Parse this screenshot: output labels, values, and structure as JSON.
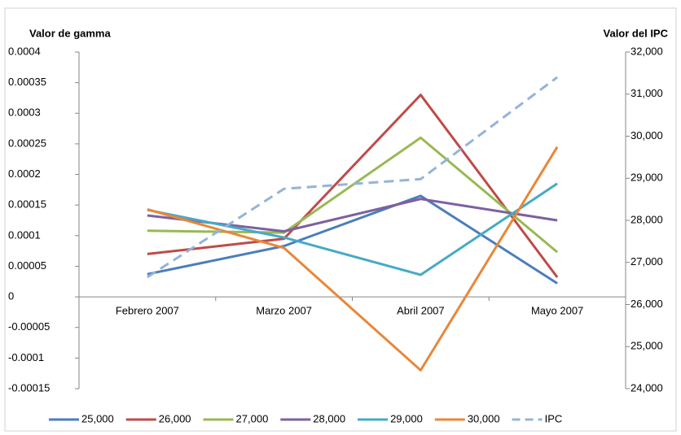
{
  "chart_data": {
    "type": "line",
    "y_label": "Valor de gamma",
    "y2_label": "Valor del IPC",
    "categories": [
      "Febrero 2007",
      "Marzo 2007",
      "Abril 2007",
      "Mayo 2007"
    ],
    "ylim": [
      -0.00015,
      0.0004
    ],
    "yticks": [
      -0.00015,
      -0.0001,
      -5e-05,
      0,
      5e-05,
      0.0001,
      0.00015,
      0.0002,
      0.00025,
      0.0003,
      0.00035,
      0.0004
    ],
    "y2lim": [
      24000,
      32000
    ],
    "y2ticks": [
      {
        "value": 24000,
        "label": "24,000"
      },
      {
        "value": 25000,
        "label": "25,000"
      },
      {
        "value": 26000,
        "label": "26,000"
      },
      {
        "value": 27000,
        "label": "27,000"
      },
      {
        "value": 28000,
        "label": "28,000"
      },
      {
        "value": 29000,
        "label": "29,000"
      },
      {
        "value": 30000,
        "label": "30,000"
      },
      {
        "value": 31000,
        "label": "31,000"
      },
      {
        "value": 32000,
        "label": "32,000"
      }
    ],
    "grid": false,
    "legend": "bottom",
    "series": [
      {
        "name": "25,000",
        "color": "#4a7ebb",
        "values": [
          3.7e-05,
          8.3e-05,
          0.000165,
          2.2e-05
        ]
      },
      {
        "name": "26,000",
        "color": "#be4b48",
        "values": [
          7e-05,
          9.5e-05,
          0.00033,
          3.2e-05
        ]
      },
      {
        "name": "27,000",
        "color": "#98b954",
        "values": [
          0.000108,
          0.000105,
          0.00026,
          7.3e-05
        ]
      },
      {
        "name": "28,000",
        "color": "#7d60a0",
        "values": [
          0.000133,
          0.000107,
          0.00016,
          0.000125
        ]
      },
      {
        "name": "29,000",
        "color": "#46aac5",
        "values": [
          0.000142,
          9.7e-05,
          3.6e-05,
          0.000185
        ]
      },
      {
        "name": "30,000",
        "color": "#e8873a",
        "values": [
          0.000143,
          8e-05,
          -0.00012,
          0.000245
        ]
      },
      {
        "name": "IPC",
        "color": "#95b3d7",
        "axis": "y2",
        "line_style": "dashed",
        "values": [
          26650,
          28750,
          28980,
          31400
        ]
      }
    ]
  }
}
